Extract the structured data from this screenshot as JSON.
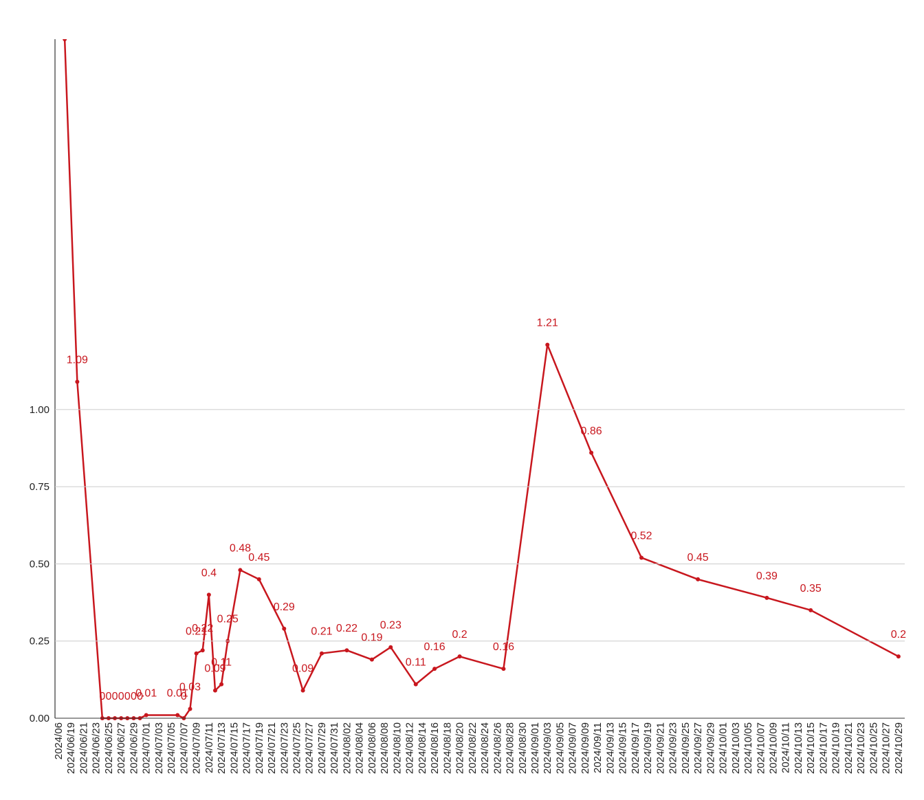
{
  "chart_data": {
    "type": "line",
    "x": [
      "2024/06/18",
      "2024/06/20",
      "2024/06/24",
      "2024/06/25",
      "2024/06/26",
      "2024/06/27",
      "2024/06/28",
      "2024/06/29",
      "2024/06/30",
      "2024/07/01",
      "2024/07/06",
      "2024/07/07",
      "2024/07/08",
      "2024/07/09",
      "2024/07/10",
      "2024/07/11",
      "2024/07/12",
      "2024/07/13",
      "2024/07/14",
      "2024/07/16",
      "2024/07/19",
      "2024/07/23",
      "2024/07/26",
      "2024/07/29",
      "2024/08/02",
      "2024/08/06",
      "2024/08/09",
      "2024/08/13",
      "2024/08/16",
      "2024/08/20",
      "2024/08/27",
      "2024/09/03",
      "2024/09/10",
      "2024/09/18",
      "2024/09/27",
      "2024/10/08",
      "2024/10/15",
      "2024/10/29"
    ],
    "series": [
      {
        "color": "#c8171e",
        "values": [
          2.2,
          1.09,
          0,
          0,
          0,
          0,
          0,
          0,
          0,
          0.01,
          0.01,
          0,
          0.03,
          0.21,
          0.22,
          0.4,
          0.09,
          0.11,
          0.25,
          0.48,
          0.45,
          0.29,
          0.09,
          0.21,
          0.22,
          0.19,
          0.23,
          0.11,
          0.16,
          0.2,
          0.16,
          1.21,
          0.86,
          0.52,
          0.45,
          0.39,
          0.35,
          0.2
        ]
      }
    ],
    "xlim": [
      "2024/06/17",
      "2024/10/30"
    ],
    "xticks": [
      {
        "value": "2024/06/17",
        "label": "2024/06"
      },
      "2024/06/19",
      "2024/06/21",
      "2024/06/23",
      "2024/06/25",
      "2024/06/27",
      "2024/06/29",
      "2024/07/01",
      "2024/07/03",
      "2024/07/05",
      "2024/07/07",
      "2024/07/09",
      "2024/07/11",
      "2024/07/13",
      "2024/07/15",
      "2024/07/17",
      "2024/07/19",
      "2024/07/21",
      "2024/07/23",
      "2024/07/25",
      "2024/07/27",
      "2024/07/29",
      "2024/07/31",
      "2024/08/02",
      "2024/08/04",
      "2024/08/06",
      "2024/08/08",
      "2024/08/10",
      "2024/08/12",
      "2024/08/14",
      "2024/08/16",
      "2024/08/18",
      "2024/08/20",
      "2024/08/22",
      "2024/08/24",
      "2024/08/26",
      "2024/08/28",
      "2024/08/30",
      "2024/09/01",
      "2024/09/03",
      "2024/09/05",
      "2024/09/07",
      "2024/09/09",
      "2024/09/11",
      "2024/09/13",
      "2024/09/15",
      "2024/09/17",
      "2024/09/19",
      "2024/09/21",
      "2024/09/23",
      "2024/09/25",
      "2024/09/27",
      "2024/09/29",
      "2024/10/01",
      "2024/10/03",
      "2024/10/05",
      "2024/10/07",
      "2024/10/09",
      "2024/10/11",
      "2024/10/13",
      "2024/10/15",
      "2024/10/17",
      "2024/10/19",
      "2024/10/21",
      "2024/10/23",
      "2024/10/25",
      "2024/10/27",
      "2024/10/29"
    ],
    "ylim": [
      0,
      2.2
    ],
    "yticks": [
      {
        "value": 0,
        "label": "0.00"
      },
      {
        "value": 0.25,
        "label": "0.25"
      },
      {
        "value": 0.5,
        "label": "0.50"
      },
      {
        "value": 0.75,
        "label": "0.75"
      },
      {
        "value": 1,
        "label": "1.00"
      }
    ],
    "grid": true
  }
}
